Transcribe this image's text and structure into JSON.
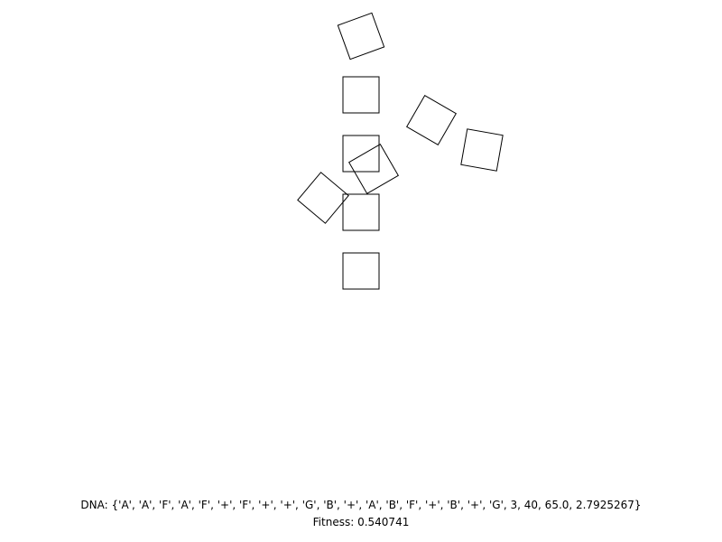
{
  "colors": {
    "background": "#ffffff",
    "stroke": "#000000"
  },
  "dna": {
    "label": "DNA:",
    "sequence": "{'A', 'A', 'F', 'A', 'F', '+', 'F', '+', '+', 'G', 'B', '+', 'A', 'B', 'F', '+', 'B', '+', 'G', 3, 40, 65.0, 2.7925267}"
  },
  "fitness": {
    "label": "Fitness:",
    "value": "0.540741"
  }
}
